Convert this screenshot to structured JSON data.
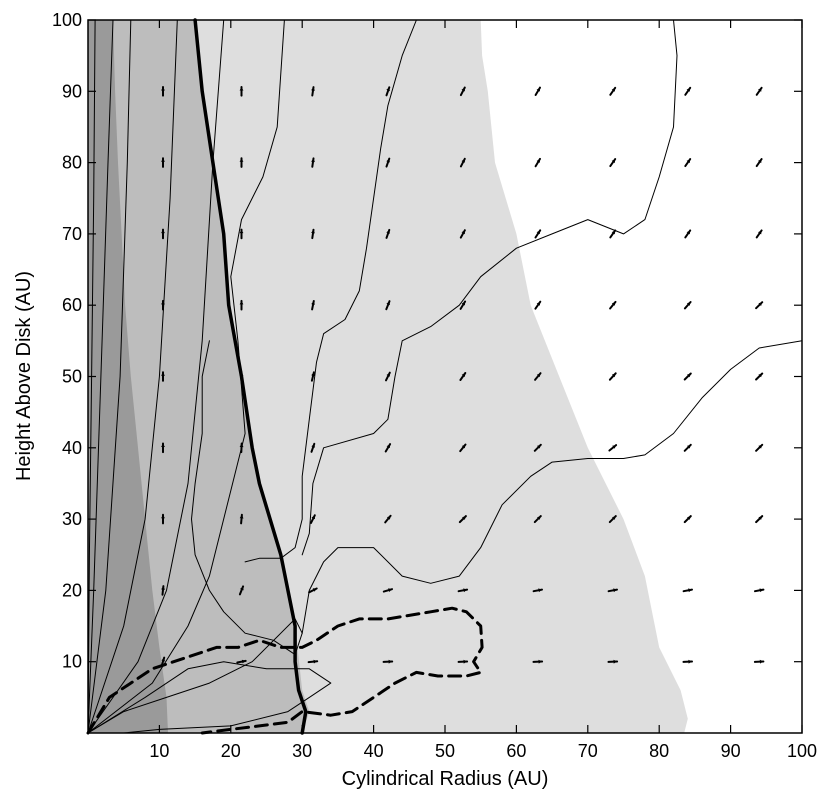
{
  "chart_data": {
    "type": "contour",
    "xlabel": "Cylindrical Radius (AU)",
    "ylabel": "Height Above Disk (AU)",
    "xlim": [
      0,
      100
    ],
    "ylim": [
      0,
      100
    ],
    "x_ticks": [
      10,
      20,
      30,
      40,
      50,
      60,
      70,
      80,
      90,
      100
    ],
    "y_ticks": [
      10,
      20,
      30,
      40,
      50,
      60,
      70,
      80,
      90,
      100
    ],
    "grid": false,
    "colors": {
      "dark": "#9a9a9a",
      "mid": "#bdbdbd",
      "light": "#dedede",
      "background": "#ffffff"
    },
    "regions": [
      {
        "shade": "light",
        "boundary": [
          [
            0,
            0
          ],
          [
            0,
            100
          ],
          [
            55,
            100
          ],
          [
            55.2,
            95
          ],
          [
            56,
            90
          ],
          [
            57,
            80
          ],
          [
            60,
            70
          ],
          [
            62,
            60
          ],
          [
            66,
            50
          ],
          [
            70,
            40
          ],
          [
            75,
            30
          ],
          [
            78,
            22
          ],
          [
            80,
            12
          ],
          [
            83,
            6
          ],
          [
            84,
            2
          ],
          [
            83.5,
            0
          ]
        ]
      },
      {
        "shade": "mid",
        "boundary": [
          [
            0,
            0
          ],
          [
            0,
            100
          ],
          [
            15,
            100
          ],
          [
            16,
            90
          ],
          [
            17.5,
            80
          ],
          [
            19,
            70
          ],
          [
            19.7,
            60
          ],
          [
            21.5,
            50
          ],
          [
            23,
            40
          ],
          [
            24,
            35
          ],
          [
            27,
            25
          ],
          [
            29,
            15
          ],
          [
            30,
            6
          ],
          [
            31,
            3
          ],
          [
            30,
            0
          ]
        ]
      },
      {
        "shade": "dark",
        "boundary": [
          [
            0,
            0
          ],
          [
            0,
            100
          ],
          [
            3.5,
            100
          ],
          [
            3.8,
            90
          ],
          [
            4.2,
            80
          ],
          [
            4.7,
            70
          ],
          [
            5.2,
            60
          ],
          [
            6,
            50
          ],
          [
            7,
            40
          ],
          [
            8,
            30
          ],
          [
            9,
            20
          ],
          [
            10,
            12
          ],
          [
            11,
            5
          ],
          [
            11.2,
            0
          ]
        ]
      }
    ],
    "contours": [
      {
        "style": "thin",
        "points": [
          [
            0,
            0
          ],
          [
            0.2,
            25
          ],
          [
            0.5,
            50
          ],
          [
            0.8,
            75
          ],
          [
            1,
            100
          ]
        ]
      },
      {
        "style": "thin",
        "points": [
          [
            0,
            0
          ],
          [
            0.8,
            20
          ],
          [
            1.8,
            50
          ],
          [
            2.8,
            80
          ],
          [
            3.5,
            100
          ]
        ]
      },
      {
        "style": "thin",
        "points": [
          [
            0,
            0
          ],
          [
            2.5,
            20
          ],
          [
            4.5,
            50
          ],
          [
            5.5,
            80
          ],
          [
            6,
            100
          ]
        ]
      },
      {
        "style": "thin",
        "points": [
          [
            0,
            0
          ],
          [
            5,
            15
          ],
          [
            8,
            30
          ],
          [
            10,
            50
          ],
          [
            11.5,
            75
          ],
          [
            12.5,
            100
          ]
        ]
      },
      {
        "style": "thin",
        "points": [
          [
            0,
            0
          ],
          [
            7,
            10
          ],
          [
            11,
            20
          ],
          [
            14,
            35
          ],
          [
            16,
            55
          ],
          [
            17.5,
            80
          ],
          [
            19,
            100
          ]
        ]
      },
      {
        "style": "thin",
        "points": [
          [
            0,
            0
          ],
          [
            9,
            7
          ],
          [
            14,
            15
          ],
          [
            17,
            22
          ],
          [
            20,
            34
          ],
          [
            22,
            42
          ],
          [
            21,
            55
          ],
          [
            20,
            64
          ],
          [
            21.5,
            72
          ],
          [
            24.5,
            78
          ],
          [
            26.5,
            85
          ],
          [
            27.5,
            100
          ]
        ]
      },
      {
        "style": "thin",
        "points": [
          [
            0,
            0
          ],
          [
            8,
            5
          ],
          [
            14,
            9
          ],
          [
            19,
            10
          ],
          [
            25,
            9
          ],
          [
            31,
            9
          ],
          [
            34,
            7
          ],
          [
            31,
            5
          ],
          [
            28,
            3
          ],
          [
            20,
            1
          ],
          [
            10,
            0.5
          ],
          [
            5,
            0
          ],
          [
            0,
            0
          ]
        ]
      },
      {
        "style": "thin",
        "points": [
          [
            0,
            0
          ],
          [
            5,
            3
          ],
          [
            11,
            5
          ],
          [
            17,
            7
          ],
          [
            23,
            10
          ],
          [
            27,
            14
          ],
          [
            29,
            16
          ],
          [
            30,
            14
          ],
          [
            29,
            11
          ],
          [
            26,
            13
          ],
          [
            22,
            14
          ],
          [
            19,
            17
          ],
          [
            17,
            20
          ],
          [
            15,
            25
          ],
          [
            14.5,
            30
          ],
          [
            15,
            35
          ],
          [
            16,
            42
          ],
          [
            16,
            50
          ],
          [
            17,
            55
          ]
        ]
      },
      {
        "style": "thin",
        "points": [
          [
            30,
            25
          ],
          [
            31,
            28
          ],
          [
            31.5,
            35
          ],
          [
            33,
            40
          ],
          [
            40,
            42
          ],
          [
            42,
            44
          ],
          [
            43,
            50
          ],
          [
            44,
            55
          ],
          [
            48,
            57
          ],
          [
            52,
            60
          ],
          [
            55,
            64
          ],
          [
            60,
            68
          ],
          [
            65,
            70
          ],
          [
            70,
            72
          ],
          [
            75,
            70
          ],
          [
            78,
            72
          ],
          [
            80,
            78
          ],
          [
            82,
            85
          ],
          [
            82.5,
            95
          ],
          [
            82,
            100
          ]
        ]
      },
      {
        "style": "thin",
        "points": [
          [
            30,
            14
          ],
          [
            31,
            20
          ],
          [
            33,
            24
          ],
          [
            35,
            26
          ],
          [
            40,
            26
          ],
          [
            44,
            22
          ],
          [
            48,
            21
          ],
          [
            52,
            22
          ],
          [
            55,
            26
          ],
          [
            58,
            32
          ],
          [
            62,
            36
          ],
          [
            65,
            38
          ],
          [
            70,
            38.5
          ],
          [
            75,
            38.5
          ],
          [
            78,
            39
          ],
          [
            82,
            42
          ],
          [
            86,
            47
          ],
          [
            90,
            51
          ],
          [
            94,
            54
          ],
          [
            100,
            55
          ]
        ]
      },
      {
        "style": "thin",
        "points": [
          [
            22,
            24
          ],
          [
            24,
            24.5
          ],
          [
            27,
            24.5
          ],
          [
            29,
            26
          ],
          [
            30,
            30
          ],
          [
            30,
            36
          ],
          [
            31,
            44
          ],
          [
            32,
            52
          ],
          [
            33,
            56
          ],
          [
            36,
            58
          ],
          [
            38,
            62
          ],
          [
            39,
            68
          ],
          [
            40,
            75
          ],
          [
            41,
            82
          ],
          [
            42,
            88
          ],
          [
            44,
            95
          ],
          [
            46,
            100
          ]
        ]
      },
      {
        "style": "thick",
        "points": [
          [
            15,
            100
          ],
          [
            16,
            90
          ],
          [
            17.5,
            80
          ],
          [
            19,
            70
          ],
          [
            19.7,
            60
          ],
          [
            21.5,
            50
          ],
          [
            23,
            40
          ],
          [
            24,
            35
          ],
          [
            27,
            25
          ],
          [
            29,
            15
          ],
          [
            29,
            10
          ],
          [
            29.5,
            6
          ],
          [
            30.5,
            3
          ],
          [
            30,
            0
          ]
        ]
      },
      {
        "style": "dashed",
        "points": [
          [
            0,
            0
          ],
          [
            3,
            5
          ],
          [
            6,
            7
          ],
          [
            9,
            9
          ],
          [
            12,
            10
          ],
          [
            15,
            11
          ],
          [
            18,
            12
          ],
          [
            21,
            12
          ],
          [
            24,
            13
          ],
          [
            27,
            12
          ],
          [
            30,
            12
          ],
          [
            32,
            13
          ],
          [
            35,
            15
          ],
          [
            38,
            16
          ],
          [
            42,
            16
          ],
          [
            45,
            16.5
          ],
          [
            48,
            17
          ],
          [
            51,
            17.5
          ],
          [
            53,
            17
          ],
          [
            55,
            15
          ],
          [
            55.2,
            12
          ],
          [
            54,
            10
          ],
          [
            55,
            8.5
          ],
          [
            53,
            8
          ],
          [
            49,
            8
          ],
          [
            46,
            8.5
          ],
          [
            43,
            7
          ],
          [
            40,
            5
          ],
          [
            37,
            3
          ],
          [
            34,
            2.5
          ],
          [
            30,
            3
          ],
          [
            28,
            1.5
          ],
          [
            24,
            1
          ],
          [
            20,
            0.5
          ],
          [
            16,
            0
          ]
        ]
      }
    ],
    "vector_field": {
      "x": [
        10.5,
        21.5,
        31.5,
        42,
        52.5,
        63,
        73.5,
        84,
        94
      ],
      "y": [
        90,
        80,
        70,
        60,
        50,
        40,
        30,
        20,
        10
      ],
      "arrows": [
        [
          [
            0,
            1
          ],
          [
            0,
            1
          ],
          [
            0.15,
            1
          ],
          [
            0.35,
            1
          ],
          [
            0.5,
            1
          ],
          [
            0.6,
            1
          ],
          [
            0.7,
            1
          ],
          [
            0.7,
            1
          ],
          [
            0.7,
            1
          ]
        ],
        [
          [
            0,
            1
          ],
          [
            0,
            1
          ],
          [
            0.15,
            1
          ],
          [
            0.35,
            1
          ],
          [
            0.5,
            1
          ],
          [
            0.6,
            1
          ],
          [
            0.7,
            1
          ],
          [
            0.7,
            1
          ],
          [
            0.7,
            1
          ]
        ],
        [
          [
            0,
            1
          ],
          [
            0,
            1
          ],
          [
            0.15,
            1
          ],
          [
            0.35,
            1
          ],
          [
            0.55,
            1
          ],
          [
            0.65,
            1
          ],
          [
            0.7,
            1
          ],
          [
            0.7,
            1
          ],
          [
            0.7,
            1
          ]
        ],
        [
          [
            0,
            1
          ],
          [
            0,
            1
          ],
          [
            0.2,
            1
          ],
          [
            0.4,
            1
          ],
          [
            0.6,
            1
          ],
          [
            0.7,
            1
          ],
          [
            0.8,
            1
          ],
          [
            0.9,
            1
          ],
          [
            1,
            1
          ]
        ],
        [
          [
            0,
            1
          ],
          [
            0,
            1
          ],
          [
            0.25,
            1
          ],
          [
            0.5,
            1
          ],
          [
            0.7,
            1
          ],
          [
            0.8,
            1
          ],
          [
            0.9,
            1
          ],
          [
            1,
            1
          ],
          [
            1,
            1
          ]
        ],
        [
          [
            0,
            1
          ],
          [
            0.05,
            1
          ],
          [
            0.35,
            1
          ],
          [
            0.6,
            1
          ],
          [
            0.8,
            1
          ],
          [
            1,
            1
          ],
          [
            1,
            0.8
          ],
          [
            1,
            1
          ],
          [
            1,
            1
          ]
        ],
        [
          [
            0,
            1
          ],
          [
            0.1,
            1
          ],
          [
            0.5,
            1
          ],
          [
            0.8,
            1
          ],
          [
            1,
            1
          ],
          [
            1,
            1
          ],
          [
            1,
            1
          ],
          [
            1,
            1
          ],
          [
            1,
            1
          ]
        ],
        [
          [
            0.1,
            1
          ],
          [
            0.4,
            1
          ],
          [
            1,
            0.5
          ],
          [
            1,
            0.3
          ],
          [
            1,
            0.2
          ],
          [
            1,
            0.2
          ],
          [
            1,
            0.2
          ],
          [
            1,
            0.2
          ],
          [
            1,
            0.2
          ]
        ],
        [
          [
            0.3,
            1
          ],
          [
            1,
            0.2
          ],
          [
            1,
            0.1
          ],
          [
            1,
            0.05
          ],
          [
            1,
            0.05
          ],
          [
            1,
            0.05
          ],
          [
            1,
            0.05
          ],
          [
            1,
            0.05
          ],
          [
            1,
            0.05
          ]
        ]
      ],
      "arrow_scale_au": [
        1.2,
        1.2,
        1.2,
        1.2,
        1.2,
        1.2,
        1.2,
        1.2,
        1.2
      ]
    }
  }
}
